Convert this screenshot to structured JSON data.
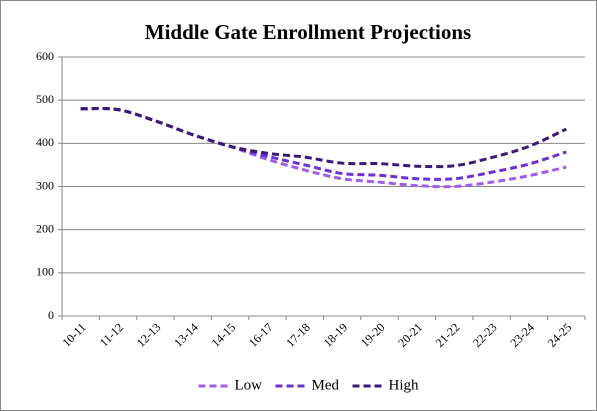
{
  "chart_data": {
    "type": "line",
    "title": "Middle Gate Enrollment Projections",
    "categories": [
      "10-11",
      "11-12",
      "12-13",
      "13-14",
      "14-15",
      "16-17",
      "17-18",
      "18-19",
      "19-20",
      "20-21",
      "21-22",
      "22-23",
      "23-24",
      "24-25"
    ],
    "series": [
      {
        "name": "Low",
        "color": "#a05cf0",
        "values": [
          480,
          478,
          452,
          420,
          393,
          363,
          338,
          318,
          310,
          302,
          300,
          310,
          325,
          345
        ]
      },
      {
        "name": "Med",
        "color": "#6a2fd8",
        "values": [
          480,
          478,
          452,
          420,
          393,
          370,
          350,
          330,
          326,
          318,
          318,
          333,
          352,
          380
        ]
      },
      {
        "name": "High",
        "color": "#3a1a78",
        "values": [
          480,
          478,
          452,
          420,
          393,
          377,
          368,
          354,
          353,
          347,
          348,
          367,
          393,
          433
        ]
      }
    ],
    "ylim": [
      0,
      600
    ],
    "yticks": [
      0,
      100,
      200,
      300,
      400,
      500,
      600
    ],
    "grid": true,
    "legend": "bottom"
  }
}
